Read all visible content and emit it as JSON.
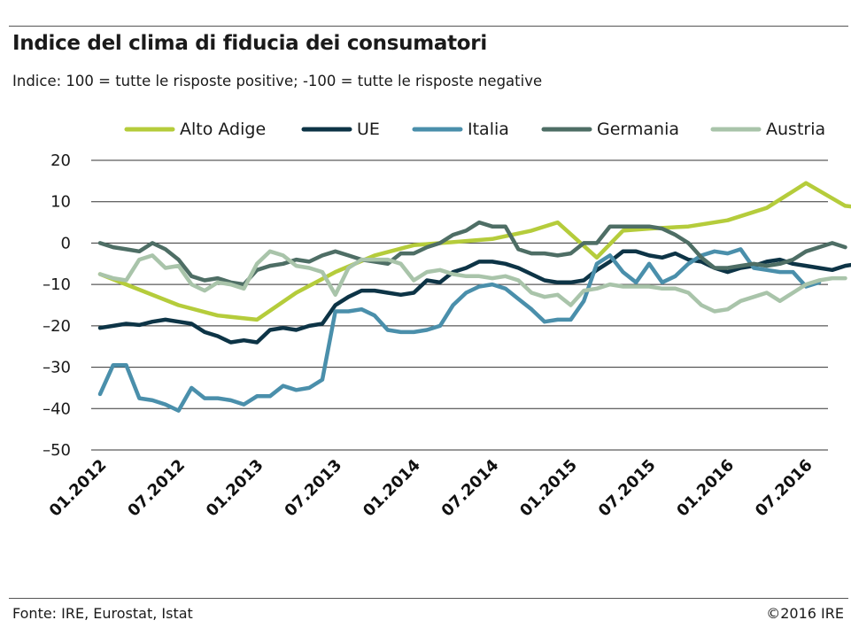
{
  "title": "Indice del clima di fiducia dei consumatori",
  "subtitle": "Indice: 100 = tutte le risposte positive; -100 =  tutte le risposte negative",
  "footer": {
    "source": "Fonte:  IRE, Eurostat, Istat",
    "copyright": "©2016 IRE"
  },
  "chart_data": {
    "type": "line",
    "title": "Indice del clima di fiducia dei consumatori",
    "xlabel": "",
    "ylabel": "",
    "ylim": [
      -50,
      20
    ],
    "yticks": [
      20,
      10,
      0,
      -10,
      -20,
      -30,
      -40,
      -50
    ],
    "xticks": [
      "01.2012",
      "07.2012",
      "01.2013",
      "07.2013",
      "01.2014",
      "07.2014",
      "01.2015",
      "07.2015",
      "01.2016",
      "07.2016"
    ],
    "grid": true,
    "legend_placement": "top",
    "series": [
      {
        "name": "Alto Adige",
        "color": "#b5cc3b",
        "points": [
          [
            0,
            -7.5
          ],
          [
            6,
            -15
          ],
          [
            9,
            -17.5
          ],
          [
            12,
            -18.5
          ],
          [
            15,
            -12
          ],
          [
            18,
            -7
          ],
          [
            21,
            -3
          ],
          [
            24,
            -0.5
          ],
          [
            30,
            1
          ],
          [
            33,
            3
          ],
          [
            35,
            5
          ],
          [
            38,
            -3.5
          ],
          [
            40,
            3
          ],
          [
            42,
            3.5
          ],
          [
            45,
            4
          ],
          [
            48,
            5.5
          ],
          [
            51,
            8.5
          ],
          [
            54,
            14.5
          ],
          [
            57,
            9
          ],
          [
            61,
            7.5
          ]
        ]
      },
      {
        "name": "UE",
        "color": "#0d3446",
        "points": [
          [
            0,
            -20.5
          ],
          [
            1,
            -20
          ],
          [
            2,
            -19.5
          ],
          [
            3,
            -19.8
          ],
          [
            4,
            -19
          ],
          [
            5,
            -18.5
          ],
          [
            6,
            -19
          ],
          [
            7,
            -19.5
          ],
          [
            8,
            -21.5
          ],
          [
            9,
            -22.5
          ],
          [
            10,
            -24
          ],
          [
            11,
            -23.5
          ],
          [
            12,
            -24
          ],
          [
            13,
            -21
          ],
          [
            14,
            -20.5
          ],
          [
            15,
            -21
          ],
          [
            16,
            -20
          ],
          [
            17,
            -19.5
          ],
          [
            18,
            -15
          ],
          [
            19,
            -13
          ],
          [
            20,
            -11.5
          ],
          [
            21,
            -11.5
          ],
          [
            22,
            -12
          ],
          [
            23,
            -12.5
          ],
          [
            24,
            -12
          ],
          [
            25,
            -9
          ],
          [
            26,
            -9.5
          ],
          [
            27,
            -7
          ],
          [
            28,
            -6
          ],
          [
            29,
            -4.5
          ],
          [
            30,
            -4.5
          ],
          [
            31,
            -5
          ],
          [
            32,
            -6
          ],
          [
            33,
            -7.5
          ],
          [
            34,
            -9
          ],
          [
            35,
            -9.5
          ],
          [
            36,
            -9.5
          ],
          [
            37,
            -9
          ],
          [
            38,
            -6.5
          ],
          [
            39,
            -4.5
          ],
          [
            40,
            -2
          ],
          [
            41,
            -2
          ],
          [
            42,
            -3
          ],
          [
            43,
            -3.5
          ],
          [
            44,
            -2.5
          ],
          [
            45,
            -4
          ],
          [
            46,
            -4.5
          ],
          [
            47,
            -6
          ],
          [
            48,
            -7
          ],
          [
            49,
            -6
          ],
          [
            50,
            -5.5
          ],
          [
            51,
            -4.5
          ],
          [
            52,
            -4
          ],
          [
            53,
            -5
          ],
          [
            54,
            -5.5
          ],
          [
            55,
            -6
          ],
          [
            56,
            -6.5
          ],
          [
            57,
            -5.5
          ],
          [
            58,
            -5
          ],
          [
            59,
            -4.5
          ],
          [
            60,
            -5
          ],
          [
            61,
            -7
          ]
        ]
      },
      {
        "name": "Italia",
        "color": "#4a8fab",
        "points": [
          [
            0,
            -36.5
          ],
          [
            1,
            -29.5
          ],
          [
            2,
            -29.5
          ],
          [
            3,
            -37.5
          ],
          [
            4,
            -38
          ],
          [
            5,
            -39
          ],
          [
            6,
            -40.5
          ],
          [
            7,
            -35
          ],
          [
            8,
            -37.5
          ],
          [
            9,
            -37.5
          ],
          [
            10,
            -38
          ],
          [
            11,
            -39
          ],
          [
            12,
            -37
          ],
          [
            13,
            -37
          ],
          [
            14,
            -34.5
          ],
          [
            15,
            -35.5
          ],
          [
            16,
            -35
          ],
          [
            17,
            -33
          ],
          [
            18,
            -16.5
          ],
          [
            19,
            -16.5
          ],
          [
            20,
            -16
          ],
          [
            21,
            -17.5
          ],
          [
            22,
            -21
          ],
          [
            23,
            -21.5
          ],
          [
            24,
            -21.5
          ],
          [
            25,
            -21
          ],
          [
            26,
            -20
          ],
          [
            27,
            -15
          ],
          [
            28,
            -12
          ],
          [
            29,
            -10.5
          ],
          [
            30,
            -10
          ],
          [
            31,
            -11
          ],
          [
            32,
            -13.5
          ],
          [
            33,
            -16
          ],
          [
            34,
            -19
          ],
          [
            35,
            -18.5
          ],
          [
            36,
            -18.5
          ],
          [
            37,
            -14
          ],
          [
            38,
            -5
          ],
          [
            39,
            -3
          ],
          [
            40,
            -7
          ],
          [
            41,
            -9.5
          ],
          [
            42,
            -5
          ],
          [
            43,
            -9.5
          ],
          [
            44,
            -8
          ],
          [
            45,
            -5
          ],
          [
            46,
            -3
          ],
          [
            47,
            -2
          ],
          [
            48,
            -2.5
          ],
          [
            49,
            -1.5
          ],
          [
            50,
            -6
          ],
          [
            51,
            -6.5
          ],
          [
            52,
            -7
          ],
          [
            53,
            -7
          ],
          [
            54,
            -10.5
          ],
          [
            55,
            -9.5
          ]
        ]
      },
      {
        "name": "Germania",
        "color": "#4e6e65",
        "points": [
          [
            0,
            0
          ],
          [
            1,
            -1
          ],
          [
            2,
            -1.5
          ],
          [
            3,
            -2
          ],
          [
            4,
            0
          ],
          [
            5,
            -1.5
          ],
          [
            6,
            -4
          ],
          [
            7,
            -8
          ],
          [
            8,
            -9
          ],
          [
            9,
            -8.5
          ],
          [
            10,
            -9.5
          ],
          [
            11,
            -10
          ],
          [
            12,
            -6.5
          ],
          [
            13,
            -5.5
          ],
          [
            14,
            -5
          ],
          [
            15,
            -4
          ],
          [
            16,
            -4.5
          ],
          [
            17,
            -3
          ],
          [
            18,
            -2
          ],
          [
            19,
            -3
          ],
          [
            20,
            -4
          ],
          [
            21,
            -4.5
          ],
          [
            22,
            -5
          ],
          [
            23,
            -2.5
          ],
          [
            24,
            -2.5
          ],
          [
            25,
            -1
          ],
          [
            26,
            0
          ],
          [
            27,
            2
          ],
          [
            28,
            3
          ],
          [
            29,
            5
          ],
          [
            30,
            4
          ],
          [
            31,
            4
          ],
          [
            32,
            -1.5
          ],
          [
            33,
            -2.5
          ],
          [
            34,
            -2.5
          ],
          [
            35,
            -3
          ],
          [
            36,
            -2.5
          ],
          [
            37,
            0
          ],
          [
            38,
            0
          ],
          [
            39,
            4
          ],
          [
            40,
            4
          ],
          [
            41,
            4
          ],
          [
            42,
            4
          ],
          [
            43,
            3.5
          ],
          [
            44,
            2
          ],
          [
            45,
            0
          ],
          [
            46,
            -3.5
          ],
          [
            47,
            -6
          ],
          [
            48,
            -6
          ],
          [
            49,
            -5.5
          ],
          [
            50,
            -5
          ],
          [
            51,
            -5.5
          ],
          [
            52,
            -5
          ],
          [
            53,
            -4
          ],
          [
            54,
            -2
          ],
          [
            55,
            -1
          ],
          [
            56,
            0
          ],
          [
            57,
            -1
          ]
        ]
      },
      {
        "name": "Austria",
        "color": "#a9c4aa",
        "points": [
          [
            0,
            -7.5
          ],
          [
            1,
            -8.5
          ],
          [
            2,
            -9
          ],
          [
            3,
            -4
          ],
          [
            4,
            -3
          ],
          [
            5,
            -6
          ],
          [
            6,
            -5.5
          ],
          [
            7,
            -10
          ],
          [
            8,
            -11.5
          ],
          [
            9,
            -9.5
          ],
          [
            10,
            -10
          ],
          [
            11,
            -11
          ],
          [
            12,
            -5
          ],
          [
            13,
            -2
          ],
          [
            14,
            -3
          ],
          [
            15,
            -5.5
          ],
          [
            16,
            -6
          ],
          [
            17,
            -7
          ],
          [
            18,
            -12.5
          ],
          [
            19,
            -6
          ],
          [
            20,
            -4
          ],
          [
            21,
            -4
          ],
          [
            22,
            -4
          ],
          [
            23,
            -5
          ],
          [
            24,
            -9
          ],
          [
            25,
            -7
          ],
          [
            26,
            -6.5
          ],
          [
            27,
            -7.5
          ],
          [
            28,
            -8
          ],
          [
            29,
            -8
          ],
          [
            30,
            -8.5
          ],
          [
            31,
            -8
          ],
          [
            32,
            -9
          ],
          [
            33,
            -12
          ],
          [
            34,
            -13
          ],
          [
            35,
            -12.5
          ],
          [
            36,
            -15
          ],
          [
            37,
            -11.5
          ],
          [
            38,
            -11
          ],
          [
            39,
            -10
          ],
          [
            40,
            -10.5
          ],
          [
            41,
            -10.5
          ],
          [
            42,
            -10.5
          ],
          [
            43,
            -11
          ],
          [
            44,
            -11
          ],
          [
            45,
            -12
          ],
          [
            46,
            -15
          ],
          [
            47,
            -16.5
          ],
          [
            48,
            -16
          ],
          [
            49,
            -14
          ],
          [
            50,
            -13
          ],
          [
            51,
            -12
          ],
          [
            52,
            -14
          ],
          [
            53,
            -12
          ],
          [
            54,
            -10
          ],
          [
            55,
            -9
          ],
          [
            56,
            -8.5
          ],
          [
            57,
            -8.5
          ]
        ]
      }
    ]
  }
}
